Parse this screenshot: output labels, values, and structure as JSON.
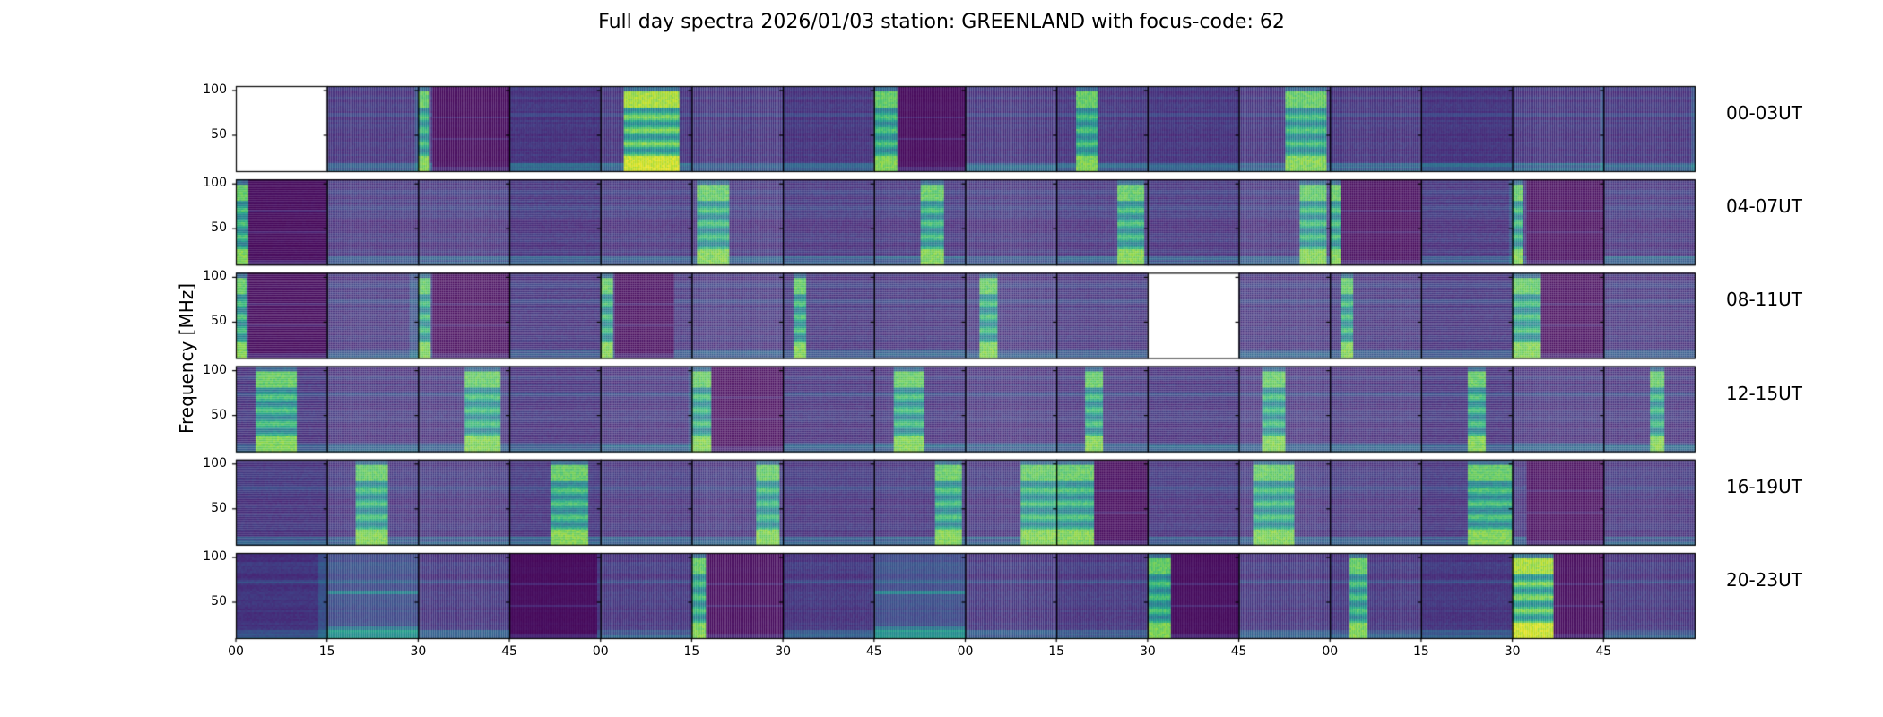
{
  "chart_data": {
    "type": "heatmap",
    "title": "Full day spectra 2026/01/03 station: GREENLAND with focus-code: 62",
    "ylabel": "Frequency [MHz]",
    "xlabel": "",
    "ylim": [
      10,
      105
    ],
    "yticks": [
      50,
      100
    ],
    "ytick_labels": [
      "50",
      "100"
    ],
    "xtick_labels": [
      "00",
      "15",
      "30",
      "45",
      "00",
      "15",
      "30",
      "45",
      "00",
      "15",
      "30",
      "45",
      "00",
      "15",
      "30",
      "45"
    ],
    "colormap": "viridis",
    "panels_per_row": 16,
    "rows": [
      {
        "label": "00-03UT",
        "panels": [
          {
            "empty": true
          },
          {
            "edge": 0.95
          },
          {
            "burst": [
              0,
              0.1
            ],
            "dark": [
              0.15,
              1
            ]
          },
          {},
          {
            "burst": [
              0.25,
              0.85
            ],
            "strong": true
          },
          {},
          {},
          {
            "burst": [
              0,
              0.25
            ],
            "dark": [
              0.25,
              1
            ]
          },
          {},
          {
            "burst": [
              0.2,
              0.45
            ]
          },
          {},
          {
            "burst": [
              0.5,
              0.95
            ]
          },
          {},
          {},
          {
            "edge": 0.95
          },
          {
            "edge": 0.95
          }
        ]
      },
      {
        "label": "04-07UT",
        "panels": [
          {
            "burst": [
              0,
              0.12
            ],
            "dark": [
              0.12,
              1
            ]
          },
          {},
          {},
          {},
          {},
          {
            "burst": [
              0.05,
              0.4
            ]
          },
          {},
          {
            "burst": [
              0.5,
              0.75
            ]
          },
          {},
          {
            "burst": [
              0.65,
              0.95
            ]
          },
          {},
          {
            "burst": [
              0.65,
              0.95
            ]
          },
          {
            "burst": [
              0,
              0.1
            ],
            "dark": [
              0.1,
              1
            ]
          },
          {
            "edge": 0.95
          },
          {
            "burst": [
              0,
              0.1
            ],
            "dark": [
              0.15,
              1
            ]
          },
          {}
        ]
      },
      {
        "label": "08-11UT",
        "panels": [
          {
            "burst": [
              0,
              0.1
            ],
            "dark": [
              0.12,
              1
            ]
          },
          {
            "edge": 0.9
          },
          {
            "burst": [
              0,
              0.12
            ],
            "dark": [
              0.15,
              1
            ]
          },
          {},
          {
            "burst": [
              0,
              0.12
            ],
            "dark": [
              0.15,
              0.8
            ]
          },
          {},
          {
            "burst": [
              0.1,
              0.25
            ]
          },
          {},
          {
            "burst": [
              0.15,
              0.35
            ]
          },
          {},
          {
            "empty": true
          },
          {},
          {
            "burst": [
              0.1,
              0.25
            ]
          },
          {},
          {
            "burst": [
              0,
              0.3
            ],
            "dark": [
              0.3,
              1
            ]
          },
          {}
        ]
      },
      {
        "label": "12-15UT",
        "panels": [
          {
            "burst": [
              0.2,
              0.65
            ]
          },
          {},
          {
            "burst": [
              0.5,
              0.9
            ]
          },
          {},
          {
            "edge": 0.95
          },
          {
            "burst": [
              0,
              0.2
            ],
            "dark": [
              0.2,
              1
            ]
          },
          {},
          {
            "burst": [
              0.2,
              0.55
            ]
          },
          {},
          {
            "burst": [
              0.3,
              0.5
            ]
          },
          {},
          {
            "burst": [
              0.25,
              0.5
            ]
          },
          {},
          {
            "burst": [
              0.5,
              0.7
            ]
          },
          {},
          {
            "burst": [
              0.5,
              0.65
            ]
          }
        ]
      },
      {
        "label": "16-19UT",
        "panels": [
          {},
          {
            "burst": [
              0.3,
              0.65
            ]
          },
          {},
          {
            "burst": [
              0.45,
              0.85
            ]
          },
          {},
          {
            "burst": [
              0.7,
              0.95
            ]
          },
          {},
          {
            "burst": [
              0.65,
              0.95
            ]
          },
          {
            "burst": [
              0.6,
              1
            ]
          },
          {
            "burst": [
              0,
              0.4
            ],
            "dark": [
              0.4,
              1
            ]
          },
          {},
          {
            "burst": [
              0.15,
              0.6
            ]
          },
          {},
          {
            "burst": [
              0.5,
              1
            ]
          },
          {
            "dark": [
              0.15,
              1
            ]
          },
          {}
        ]
      },
      {
        "label": "20-23UT",
        "panels": [
          {
            "edge": 0.9
          },
          {
            "broad": true
          },
          {},
          {
            "dark": [
              0,
              0.95
            ]
          },
          {},
          {
            "burst": [
              0,
              0.15
            ],
            "dark": [
              0.15,
              1
            ]
          },
          {},
          {
            "broad": true
          },
          {},
          {},
          {
            "burst": [
              0,
              0.25
            ],
            "dark": [
              0.25,
              1
            ]
          },
          {},
          {
            "burst": [
              0.2,
              0.4
            ]
          },
          {},
          {
            "burst": [
              0,
              0.45
            ],
            "dark": [
              0.45,
              1
            ],
            "strong": true
          },
          {}
        ]
      }
    ]
  }
}
